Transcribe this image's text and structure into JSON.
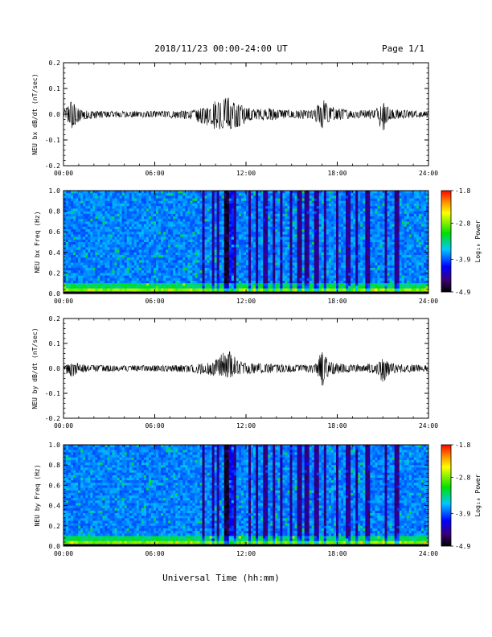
{
  "header": {
    "title": "2018/11/23  00:00-24:00 UT",
    "page_label": "Page 1/1"
  },
  "xlabel": "Universal Time (hh:mm)",
  "chart_data": [
    {
      "type": "line",
      "ylabel": "NEU bx dB/dt (nT/sec)",
      "ylim": [
        -0.2,
        0.2
      ],
      "yticks": [
        "0.2",
        "0.1",
        "0.0",
        "-0.1",
        "-0.2"
      ],
      "xticks": [
        "00:00",
        "06:00",
        "12:00",
        "18:00",
        "24:00"
      ],
      "xlim_hours": [
        0,
        24
      ],
      "envelope": {
        "x_hours": [
          0,
          0.5,
          1.0,
          1.5,
          3,
          6,
          8.5,
          9.5,
          10.0,
          10.8,
          11.5,
          12.5,
          13.5,
          15,
          16.5,
          17.0,
          17.5,
          19,
          20.5,
          21.0,
          21.5,
          23,
          24
        ],
        "max": [
          0.01,
          0.06,
          0.02,
          0.015,
          0.012,
          0.012,
          0.015,
          0.03,
          0.06,
          0.07,
          0.04,
          0.02,
          0.025,
          0.015,
          0.015,
          0.07,
          0.03,
          0.015,
          0.02,
          0.06,
          0.02,
          0.015,
          0.012
        ],
        "min": [
          -0.01,
          -0.06,
          -0.03,
          -0.02,
          -0.012,
          -0.012,
          -0.02,
          -0.05,
          -0.06,
          -0.06,
          -0.05,
          -0.02,
          -0.025,
          -0.015,
          -0.02,
          -0.06,
          -0.03,
          -0.015,
          -0.02,
          -0.07,
          -0.02,
          -0.015,
          -0.012
        ]
      }
    },
    {
      "type": "heatmap",
      "ylabel": "NEU bx Freq (Hz)",
      "ylim": [
        0.0,
        1.0
      ],
      "yticks": [
        "1.0",
        "0.8",
        "0.6",
        "0.4",
        "0.2",
        "0.0"
      ],
      "xticks": [
        "00:00",
        "06:00",
        "12:00",
        "18:00",
        "24:00"
      ],
      "xlim_hours": [
        0,
        24
      ],
      "colorbar": {
        "label": "Log₁₀ Power",
        "min": -4.9,
        "max": -1.8,
        "ticks": [
          "-1.8",
          "-2.8",
          "-3.9",
          "-4.9"
        ]
      }
    },
    {
      "type": "line",
      "ylabel": "NEU by dB/dt (nT/sec)",
      "ylim": [
        -0.2,
        0.2
      ],
      "yticks": [
        "0.2",
        "0.1",
        "0.0",
        "-0.1",
        "-0.2"
      ],
      "xticks": [
        "00:00",
        "06:00",
        "12:00",
        "18:00",
        "24:00"
      ],
      "xlim_hours": [
        0,
        24
      ],
      "envelope": {
        "x_hours": [
          0,
          0.5,
          1.0,
          1.5,
          3,
          6,
          8.5,
          9.5,
          10.0,
          10.8,
          11.5,
          12.5,
          13.5,
          15,
          16.5,
          17.0,
          17.5,
          19,
          20.5,
          21.0,
          21.5,
          23,
          24
        ],
        "max": [
          0.01,
          0.025,
          0.02,
          0.015,
          0.012,
          0.012,
          0.015,
          0.025,
          0.035,
          0.08,
          0.03,
          0.02,
          0.02,
          0.015,
          0.015,
          0.07,
          0.025,
          0.015,
          0.02,
          0.04,
          0.02,
          0.015,
          0.012
        ],
        "min": [
          -0.01,
          -0.04,
          -0.02,
          -0.015,
          -0.012,
          -0.012,
          -0.015,
          -0.03,
          -0.03,
          -0.04,
          -0.03,
          -0.02,
          -0.02,
          -0.015,
          -0.02,
          -0.08,
          -0.025,
          -0.015,
          -0.02,
          -0.06,
          -0.02,
          -0.015,
          -0.012
        ]
      }
    },
    {
      "type": "heatmap",
      "ylabel": "NEU by Freq (Hz)",
      "ylim": [
        0.0,
        1.0
      ],
      "yticks": [
        "1.0",
        "0.8",
        "0.6",
        "0.4",
        "0.2",
        "0.0"
      ],
      "xticks": [
        "00:00",
        "06:00",
        "12:00",
        "18:00",
        "24:00"
      ],
      "xlim_hours": [
        0,
        24
      ],
      "colorbar": {
        "label": "Log₁₀ Power",
        "min": -4.9,
        "max": -1.8,
        "ticks": [
          "-1.8",
          "-2.8",
          "-3.9",
          "-4.9"
        ]
      }
    }
  ]
}
